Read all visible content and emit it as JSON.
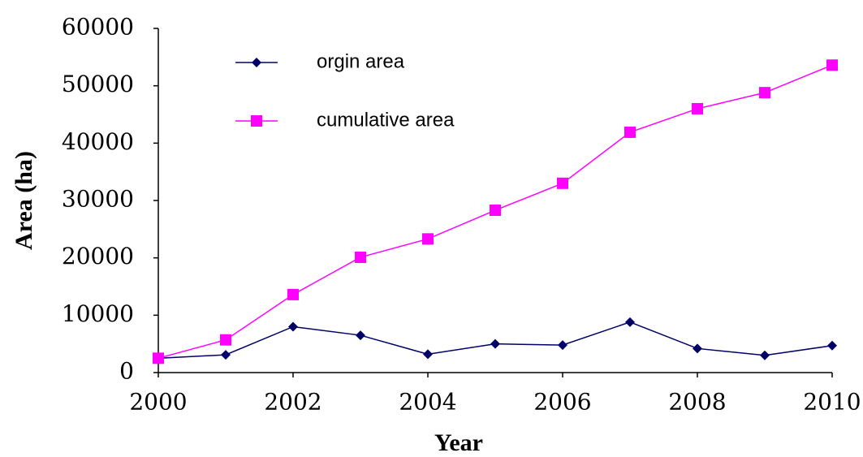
{
  "chart_data": {
    "type": "line",
    "x_label": "Year",
    "y_label": "Area (ha)",
    "x": [
      2000,
      2001,
      2002,
      2003,
      2004,
      2005,
      2006,
      2007,
      2008,
      2009,
      2010
    ],
    "series": [
      {
        "name": "orgin area",
        "color": "#000066",
        "marker": "diamond",
        "values": [
          2500,
          3100,
          8000,
          6500,
          3200,
          5000,
          4800,
          8800,
          4200,
          3000,
          4700
        ]
      },
      {
        "name": "cumulative area",
        "color": "#ff00ff",
        "marker": "square",
        "values": [
          2500,
          5700,
          13600,
          20100,
          23300,
          28300,
          33000,
          41900,
          46000,
          48800,
          53600
        ]
      }
    ],
    "xlim": [
      2000,
      2010
    ],
    "xticks": [
      2000,
      2002,
      2004,
      2006,
      2008,
      2010
    ],
    "ylim": [
      0,
      60000
    ],
    "yticks": [
      0,
      10000,
      20000,
      30000,
      40000,
      50000,
      60000
    ],
    "grid": false,
    "legend": "upper left"
  }
}
